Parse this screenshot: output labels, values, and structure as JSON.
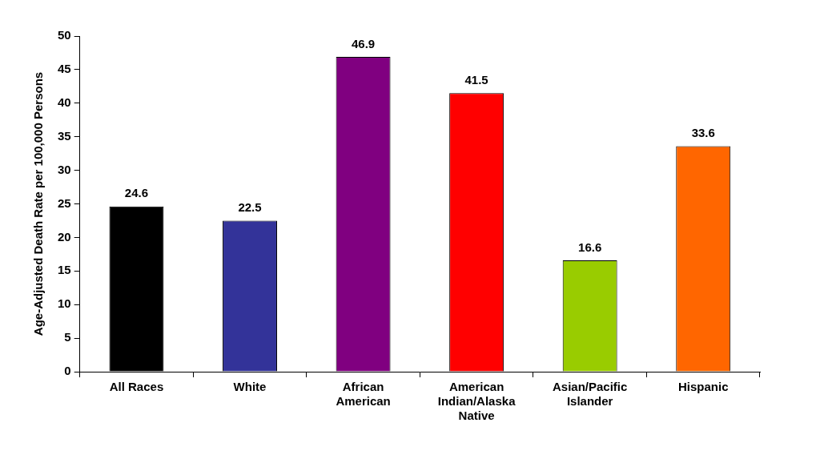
{
  "chart_data": {
    "type": "bar",
    "y_label": "Age-Adjusted Death Rate per 100,000 Persons",
    "categories": [
      "All Races",
      "White",
      "African American",
      "American Indian/Alaska Native",
      "Asian/Pacific Islander",
      "Hispanic"
    ],
    "values": [
      24.6,
      22.5,
      46.9,
      41.5,
      16.6,
      33.6
    ],
    "colors": [
      "#000000",
      "#333399",
      "#800080",
      "#ff0000",
      "#99cc00",
      "#ff6600"
    ],
    "ylim": [
      0,
      50
    ],
    "yticks": [
      0,
      5,
      10,
      15,
      20,
      25,
      30,
      35,
      40,
      45,
      50
    ],
    "grid": false,
    "data_labels": true
  }
}
